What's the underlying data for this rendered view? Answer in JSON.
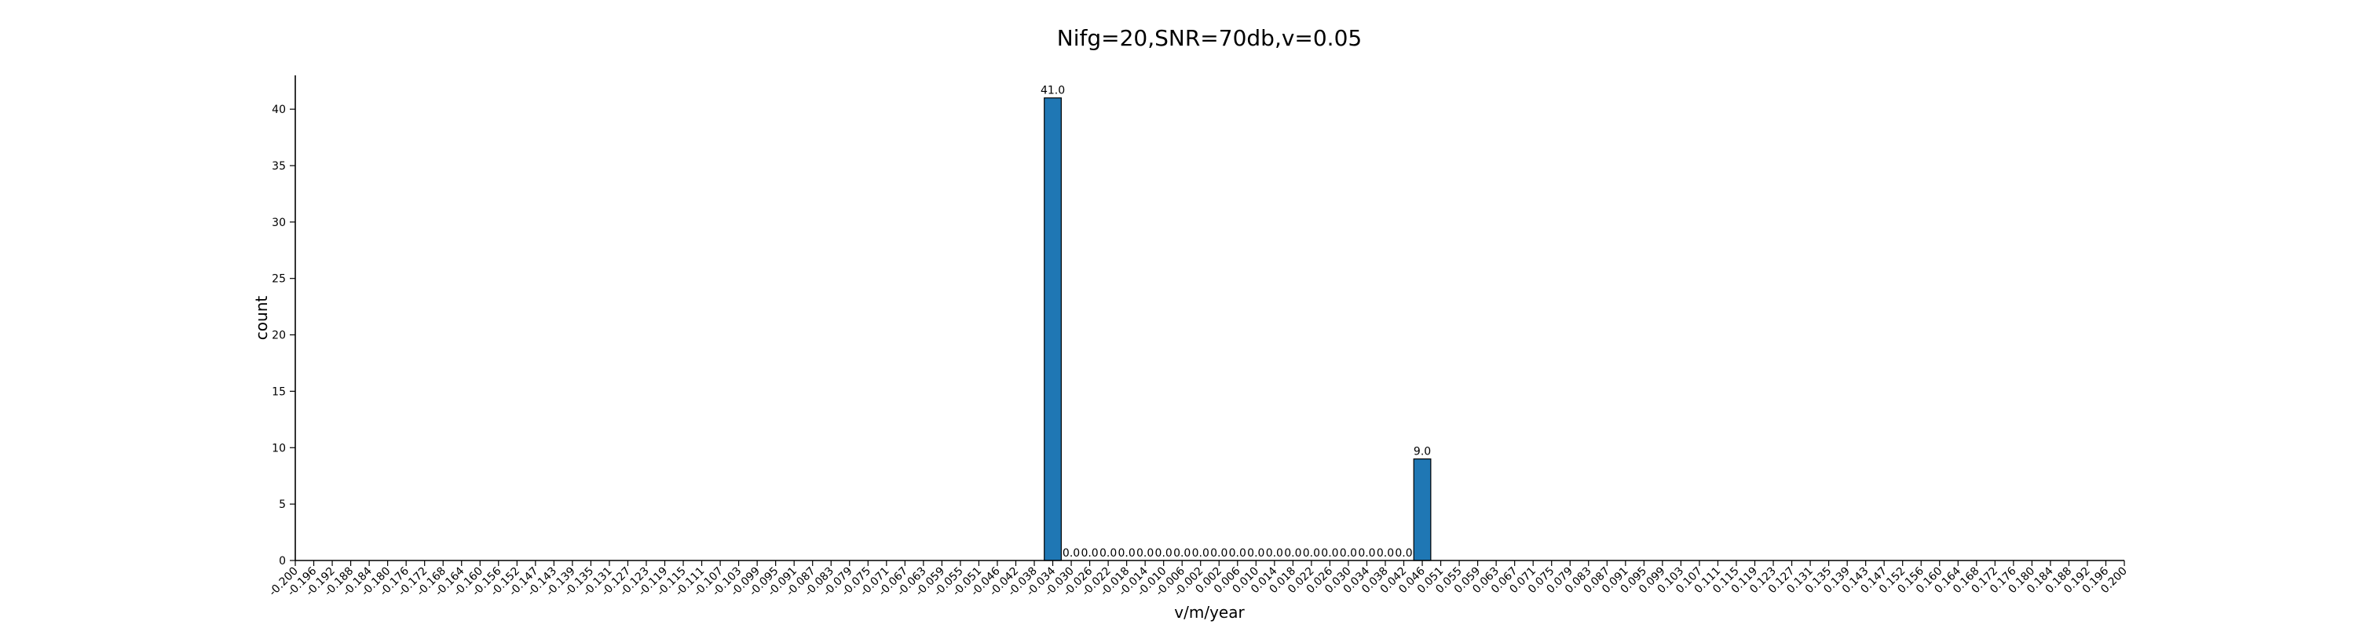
{
  "chart_data": {
    "type": "bar",
    "title": "Nifg=20,SNR=70db,v=0.05",
    "xlabel": "v/m/year",
    "ylabel": "count",
    "ylim": [
      0,
      43
    ],
    "yticks": [
      0,
      5,
      10,
      15,
      20,
      25,
      30,
      35,
      40
    ],
    "bar_color": "#1f77b4",
    "categories": [
      "-0.200",
      "-0.196",
      "-0.192",
      "-0.188",
      "-0.184",
      "-0.180",
      "-0.176",
      "-0.172",
      "-0.168",
      "-0.164",
      "-0.160",
      "-0.156",
      "-0.152",
      "-0.147",
      "-0.143",
      "-0.139",
      "-0.135",
      "-0.131",
      "-0.127",
      "-0.123",
      "-0.119",
      "-0.115",
      "-0.111",
      "-0.107",
      "-0.103",
      "-0.099",
      "-0.095",
      "-0.091",
      "-0.087",
      "-0.083",
      "-0.079",
      "-0.075",
      "-0.071",
      "-0.067",
      "-0.063",
      "-0.059",
      "-0.055",
      "-0.051",
      "-0.046",
      "-0.042",
      "-0.038",
      "-0.034",
      "-0.030",
      "-0.026",
      "-0.022",
      "-0.018",
      "-0.014",
      "-0.010",
      "-0.006",
      "-0.002",
      "0.002",
      "0.006",
      "0.010",
      "0.014",
      "0.018",
      "0.022",
      "0.026",
      "0.030",
      "0.034",
      "0.038",
      "0.042",
      "0.046",
      "0.051",
      "0.055",
      "0.059",
      "0.063",
      "0.067",
      "0.071",
      "0.075",
      "0.079",
      "0.083",
      "0.087",
      "0.091",
      "0.095",
      "0.099",
      "0.103",
      "0.107",
      "0.111",
      "0.115",
      "0.119",
      "0.123",
      "0.127",
      "0.131",
      "0.135",
      "0.139",
      "0.143",
      "0.147",
      "0.152",
      "0.156",
      "0.160",
      "0.164",
      "0.168",
      "0.172",
      "0.176",
      "0.180",
      "0.184",
      "0.188",
      "0.192",
      "0.196",
      "0.200"
    ],
    "bars": [
      {
        "category": "-0.034",
        "value": 41,
        "label": "41.0"
      },
      {
        "category": "-0.030",
        "value": 0,
        "label": "0.0"
      },
      {
        "category": "-0.026",
        "value": 0,
        "label": "0.0"
      },
      {
        "category": "-0.022",
        "value": 0,
        "label": "0.0"
      },
      {
        "category": "-0.018",
        "value": 0,
        "label": "0.0"
      },
      {
        "category": "-0.014",
        "value": 0,
        "label": "0.0"
      },
      {
        "category": "-0.010",
        "value": 0,
        "label": "0.0"
      },
      {
        "category": "-0.006",
        "value": 0,
        "label": "0.0"
      },
      {
        "category": "-0.002",
        "value": 0,
        "label": "0.0"
      },
      {
        "category": "0.002",
        "value": 0,
        "label": "0.0"
      },
      {
        "category": "0.006",
        "value": 0,
        "label": "0.0"
      },
      {
        "category": "0.010",
        "value": 0,
        "label": "0.0"
      },
      {
        "category": "0.014",
        "value": 0,
        "label": "0.0"
      },
      {
        "category": "0.018",
        "value": 0,
        "label": "0.0"
      },
      {
        "category": "0.022",
        "value": 0,
        "label": "0.0"
      },
      {
        "category": "0.026",
        "value": 0,
        "label": "0.0"
      },
      {
        "category": "0.030",
        "value": 0,
        "label": "0.0"
      },
      {
        "category": "0.034",
        "value": 0,
        "label": "0.0"
      },
      {
        "category": "0.038",
        "value": 0,
        "label": "0.0"
      },
      {
        "category": "0.042",
        "value": 0,
        "label": "0.0"
      },
      {
        "category": "0.046",
        "value": 9,
        "label": "9.0"
      }
    ]
  }
}
